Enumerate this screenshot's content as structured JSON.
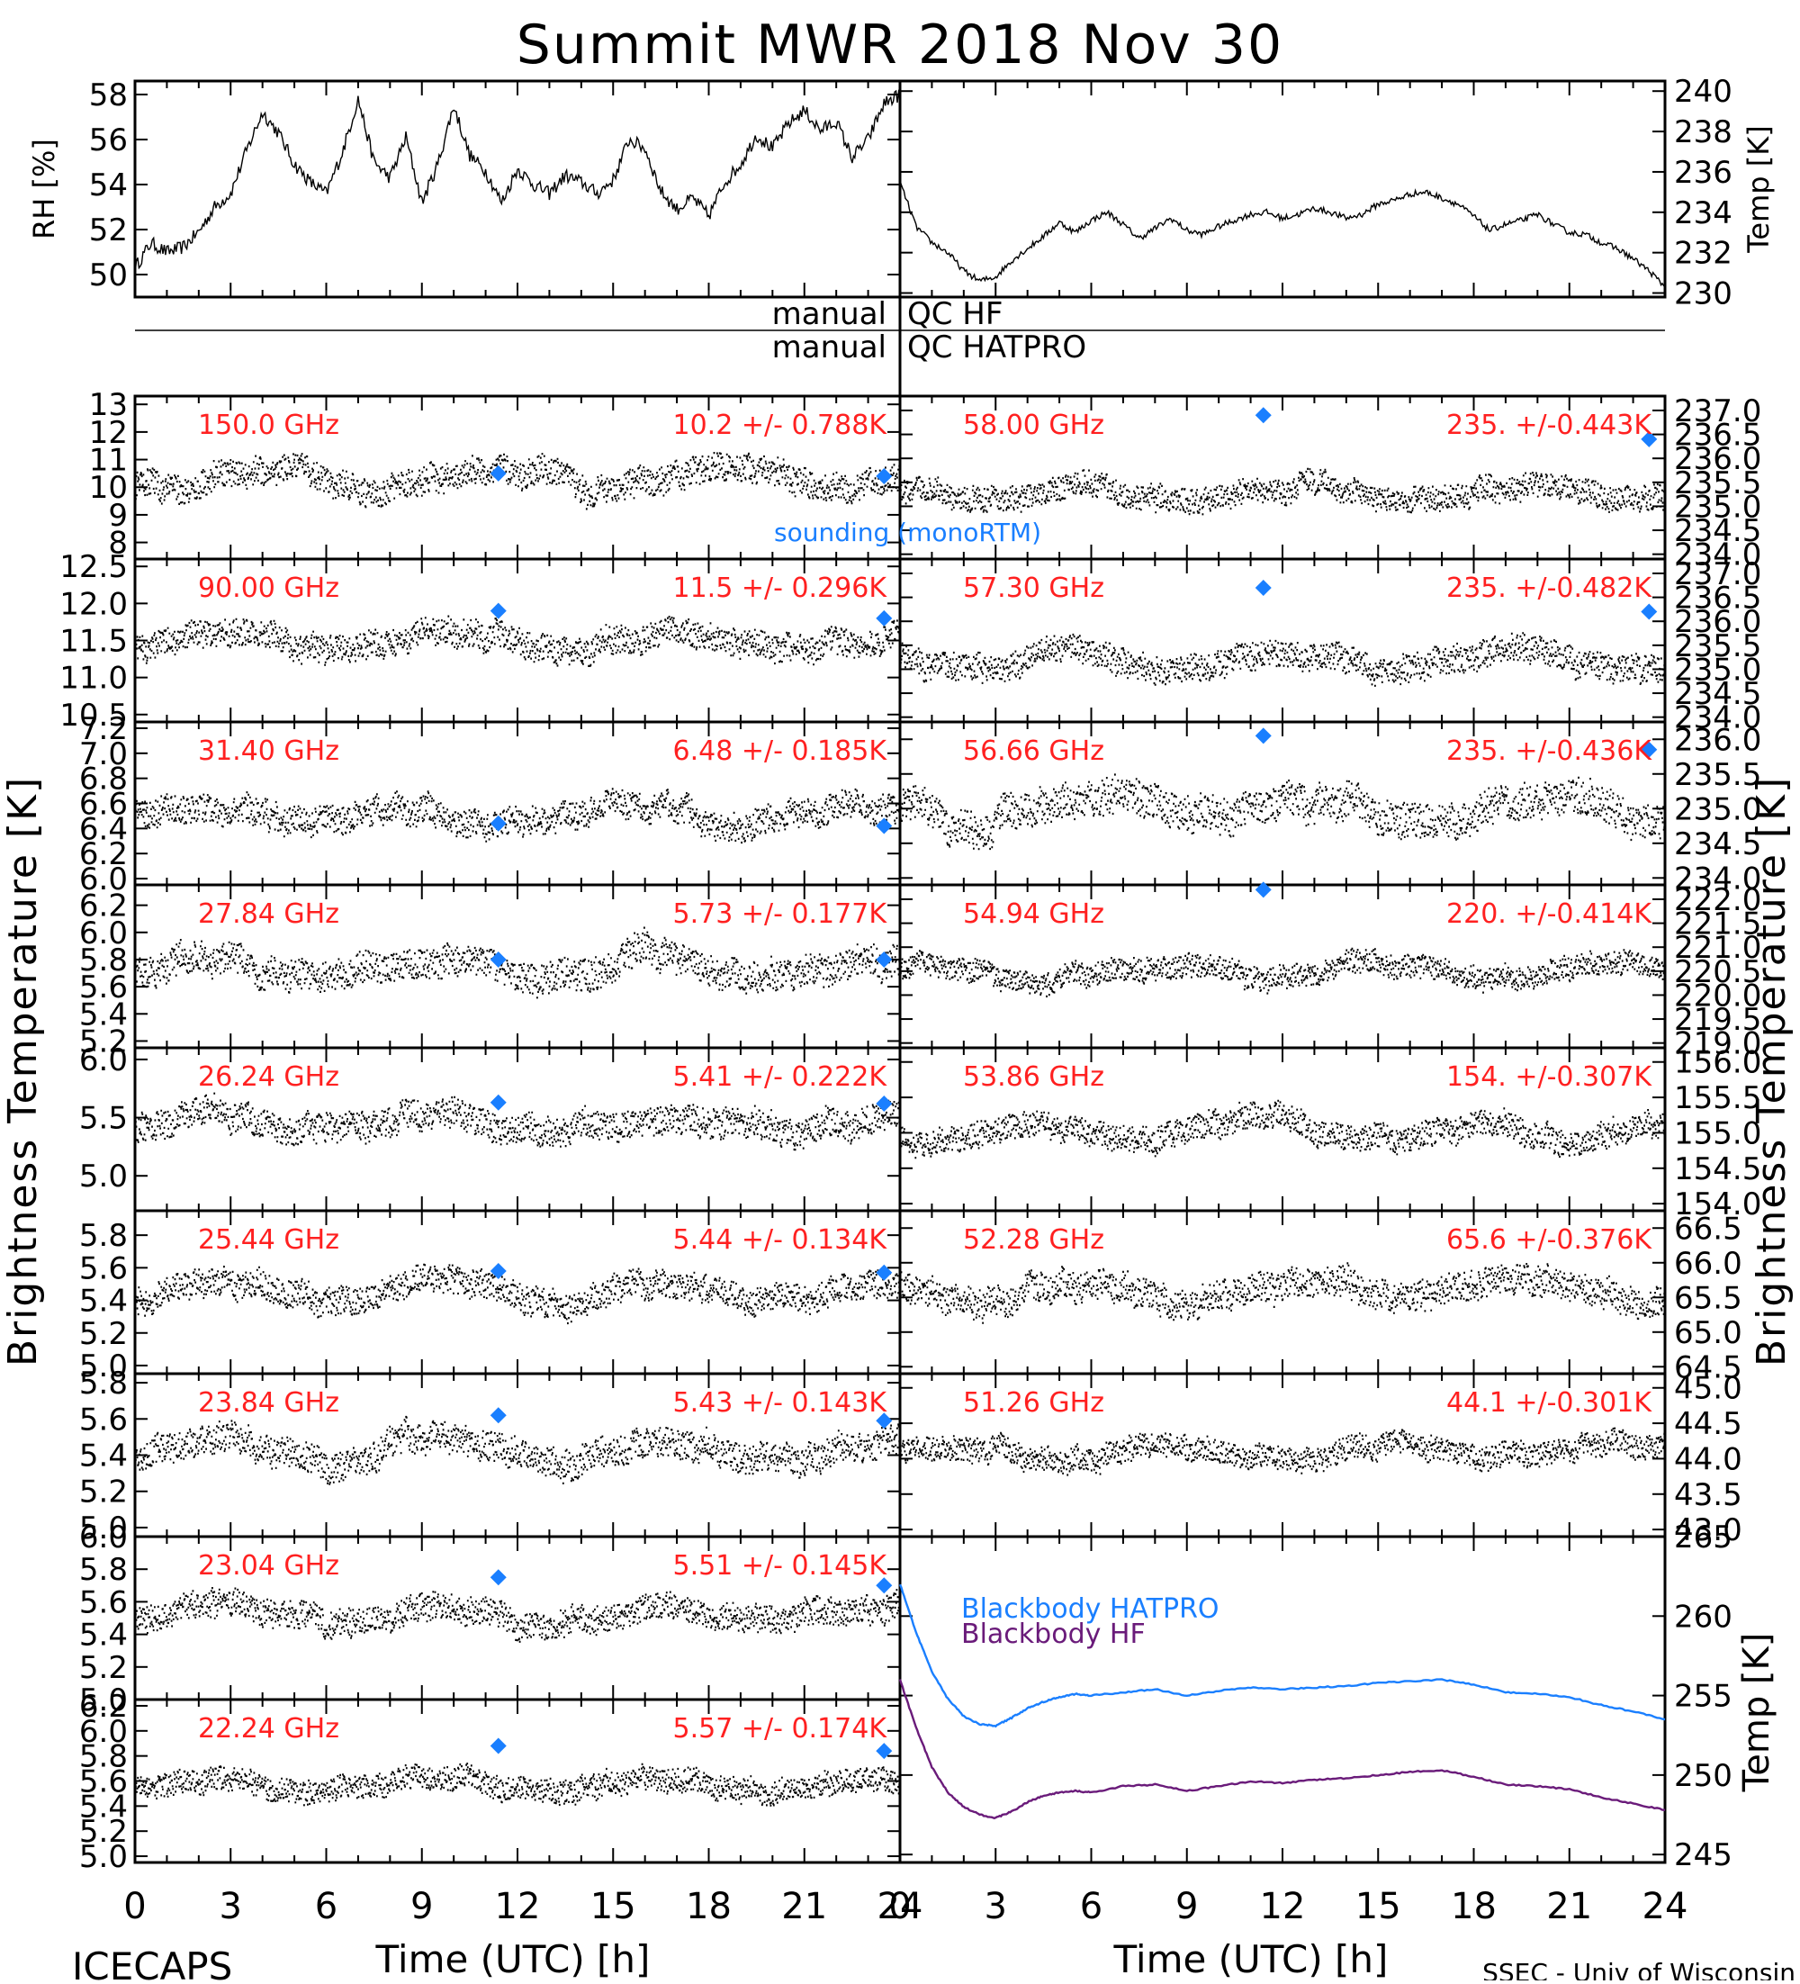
{
  "page": {
    "title": "Summit MWR 2018 Nov 30",
    "footer_left": "ICECAPS",
    "footer_right": "SSEC - Univ of Wisconsin",
    "time_label": "Time (UTC) [h]",
    "time_ticks": [
      "0",
      "3",
      "6",
      "9",
      "12",
      "15",
      "18",
      "21",
      "24"
    ],
    "left_axis_label": "Brightness Temperature [K]",
    "right_axis_label": "Brightness Temperature [K]",
    "qc_left_word": "manual",
    "qc_hf": "QC HF",
    "qc_hatpro": "QC HATPRO",
    "sounding_label": "sounding (monoRTM)",
    "colors": {
      "red_labels": "#ff2020",
      "sounding": "#1a7fff",
      "bb_hatpro": "#1a7fff",
      "bb_hf": "#6a1b7a",
      "trace": "#000000"
    }
  },
  "chart_data": [
    {
      "id": "rh",
      "type": "line",
      "xlabel": "",
      "ylabel": "RH [%]",
      "xlim": [
        0,
        24
      ],
      "ylim": [
        49,
        58.6
      ],
      "ticks": [
        50,
        52,
        54,
        56,
        58
      ],
      "x": [
        0,
        0.5,
        1,
        1.5,
        2,
        2.5,
        3,
        3.5,
        4,
        4.5,
        5,
        5.5,
        6,
        6.5,
        7,
        7.5,
        8,
        8.5,
        9,
        9.5,
        10,
        10.5,
        11,
        11.5,
        12,
        12.5,
        13,
        13.5,
        14,
        14.5,
        15,
        15.5,
        16,
        16.5,
        17,
        17.5,
        18,
        18.5,
        19,
        19.5,
        20,
        20.5,
        21,
        21.5,
        22,
        22.5,
        23,
        23.5,
        24
      ],
      "y": [
        50.3,
        51.4,
        51.0,
        51.2,
        51.9,
        53.0,
        53.6,
        55.5,
        57.2,
        56.3,
        54.9,
        54.1,
        53.6,
        55.4,
        57.8,
        55.0,
        54.3,
        56.1,
        53.2,
        54.9,
        57.5,
        55.3,
        54.6,
        53.2,
        54.7,
        54.0,
        53.6,
        54.4,
        54.1,
        53.6,
        54.2,
        56.0,
        55.6,
        53.7,
        52.9,
        53.4,
        52.6,
        54.1,
        54.9,
        56.2,
        55.6,
        56.7,
        57.3,
        56.4,
        56.8,
        55.2,
        56.0,
        57.6,
        58.0
      ]
    },
    {
      "id": "temp",
      "type": "line",
      "xlabel": "",
      "ylabel": "Temp [K]",
      "xlim": [
        0,
        24
      ],
      "ylim": [
        229.8,
        240.5
      ],
      "ticks": [
        230,
        232,
        234,
        236,
        238,
        240
      ],
      "x": [
        0,
        0.5,
        1,
        1.5,
        2,
        2.5,
        3,
        3.5,
        4,
        4.5,
        5,
        5.5,
        6,
        6.5,
        7,
        7.5,
        8,
        8.5,
        9,
        9.5,
        10,
        10.5,
        11,
        11.5,
        12,
        12.5,
        13,
        13.5,
        14,
        14.5,
        15,
        15.5,
        16,
        16.5,
        17,
        17.5,
        18,
        18.5,
        19,
        19.5,
        20,
        20.5,
        21,
        21.5,
        22,
        22.5,
        23,
        23.5,
        24
      ],
      "y": [
        235.5,
        233.3,
        232.5,
        232.0,
        231.1,
        230.6,
        230.8,
        231.6,
        232.2,
        232.8,
        233.5,
        233.0,
        233.6,
        234.0,
        233.4,
        232.7,
        233.2,
        233.7,
        233.1,
        232.9,
        233.3,
        233.6,
        233.9,
        234.0,
        233.7,
        233.9,
        234.2,
        234.0,
        233.7,
        233.9,
        234.4,
        234.6,
        234.9,
        235.0,
        234.7,
        234.4,
        233.8,
        233.1,
        233.4,
        233.6,
        233.9,
        233.4,
        233.0,
        232.9,
        232.5,
        232.2,
        231.7,
        231.1,
        230.3
      ]
    },
    {
      "id": "p150",
      "type": "scatter",
      "freq": "150.0 GHz",
      "stats": "10.2 +/- 0.788K",
      "ylim": [
        7.4,
        13.3
      ],
      "ticks": [
        "8",
        "9",
        "10",
        "11",
        "12",
        "13"
      ],
      "base": 10.3,
      "noise": 0.9,
      "diamonds": [
        [
          11.4,
          10.5
        ],
        [
          23.5,
          10.4
        ]
      ],
      "sounding_label": true
    },
    {
      "id": "p90",
      "type": "scatter",
      "freq": "90.00 GHz",
      "stats": "11.5 +/- 0.296K",
      "ylim": [
        10.4,
        12.6
      ],
      "ticks": [
        "10.5",
        "11.0",
        "11.5",
        "12.0",
        "12.5"
      ],
      "base": 11.5,
      "noise": 0.33,
      "diamonds": [
        [
          11.4,
          11.9
        ],
        [
          23.5,
          11.8
        ]
      ]
    },
    {
      "id": "p314",
      "type": "scatter",
      "freq": "31.40 GHz",
      "stats": "6.48 +/- 0.185K",
      "ylim": [
        5.95,
        7.25
      ],
      "ticks": [
        "6.0",
        "6.2",
        "6.4",
        "6.6",
        "6.8",
        "7.0",
        "7.2"
      ],
      "base": 6.5,
      "noise": 0.2,
      "diamonds": [
        [
          11.4,
          6.44
        ],
        [
          23.5,
          6.42
        ]
      ]
    },
    {
      "id": "p2784",
      "type": "scatter",
      "freq": "27.84 GHz",
      "stats": "5.73 +/- 0.177K",
      "ylim": [
        5.15,
        6.35
      ],
      "ticks": [
        "5.2",
        "5.4",
        "5.6",
        "5.8",
        "6.0",
        "6.2"
      ],
      "base": 5.75,
      "noise": 0.2,
      "diamonds": [
        [
          11.4,
          5.8
        ],
        [
          23.5,
          5.8
        ]
      ]
    },
    {
      "id": "p2624",
      "type": "scatter",
      "freq": "26.24 GHz",
      "stats": "5.41 +/- 0.222K",
      "ylim": [
        4.7,
        6.1
      ],
      "ticks": [
        "5.0",
        "5.5",
        "6.0"
      ],
      "base": 5.45,
      "noise": 0.22,
      "diamonds": [
        [
          11.4,
          5.63
        ],
        [
          23.5,
          5.62
        ]
      ]
    },
    {
      "id": "p2544",
      "type": "scatter",
      "freq": "25.44 GHz",
      "stats": "5.44 +/- 0.134K",
      "ylim": [
        4.95,
        5.95
      ],
      "ticks": [
        "5.0",
        "5.2",
        "5.4",
        "5.6",
        "5.8"
      ],
      "base": 5.45,
      "noise": 0.15,
      "diamonds": [
        [
          11.4,
          5.58
        ],
        [
          23.5,
          5.57
        ]
      ]
    },
    {
      "id": "p2384",
      "type": "scatter",
      "freq": "23.84 GHz",
      "stats": "5.43 +/- 0.143K",
      "ylim": [
        4.95,
        5.85
      ],
      "ticks": [
        "5.0",
        "5.2",
        "5.4",
        "5.6",
        "5.8"
      ],
      "base": 5.43,
      "noise": 0.15,
      "diamonds": [
        [
          11.4,
          5.62
        ],
        [
          23.5,
          5.59
        ]
      ]
    },
    {
      "id": "p2304",
      "type": "scatter",
      "freq": "23.04 GHz",
      "stats": "5.51 +/- 0.145K",
      "ylim": [
        5.0,
        6.0
      ],
      "ticks": [
        "5.0",
        "5.2",
        "5.4",
        "5.6",
        "5.8",
        "6.0"
      ],
      "base": 5.52,
      "noise": 0.15,
      "diamonds": [
        [
          11.4,
          5.75
        ],
        [
          23.5,
          5.7
        ]
      ]
    },
    {
      "id": "p2224",
      "type": "scatter",
      "freq": "22.24 GHz",
      "stats": "5.57 +/- 0.174K",
      "ylim": [
        4.95,
        6.25
      ],
      "ticks": [
        "5.0",
        "5.2",
        "5.4",
        "5.6",
        "5.8",
        "6.0",
        "6.2"
      ],
      "base": 5.57,
      "noise": 0.17,
      "diamonds": [
        [
          11.4,
          5.88
        ],
        [
          23.5,
          5.84
        ]
      ]
    },
    {
      "id": "p5800",
      "type": "scatter",
      "freq": "58.00 GHz",
      "stats": "235. +/-0.443K",
      "ylim": [
        233.9,
        237.3
      ],
      "ticks": [
        "234.0",
        "234.5",
        "235.0",
        "235.5",
        "236.0",
        "236.5",
        "237.0"
      ],
      "base": 235.3,
      "noise": 0.45,
      "diamonds": [
        [
          11.4,
          236.9
        ],
        [
          23.5,
          236.4
        ]
      ]
    },
    {
      "id": "p5730",
      "type": "scatter",
      "freq": "57.30 GHz",
      "stats": "235. +/-0.482K",
      "ylim": [
        233.9,
        237.3
      ],
      "ticks": [
        "234.0",
        "234.5",
        "235.0",
        "235.5",
        "236.0",
        "236.5",
        "237.0"
      ],
      "base": 235.2,
      "noise": 0.5,
      "diamonds": [
        [
          11.4,
          236.7
        ],
        [
          23.5,
          236.2
        ]
      ]
    },
    {
      "id": "p5666",
      "type": "scatter",
      "freq": "56.66 GHz",
      "stats": "235. +/-0.436K",
      "ylim": [
        233.9,
        236.25
      ],
      "ticks": [
        "234.0",
        "234.5",
        "235.0",
        "235.5",
        "236.0"
      ],
      "base": 235.0,
      "noise": 0.45,
      "diamonds": [
        [
          11.4,
          236.05
        ],
        [
          23.5,
          235.85
        ]
      ]
    },
    {
      "id": "p5494",
      "type": "scatter",
      "freq": "54.94 GHz",
      "stats": "220. +/-0.414K",
      "ylim": [
        218.9,
        222.3
      ],
      "ticks": [
        "219.0",
        "219.5",
        "220.0",
        "220.5",
        "221.0",
        "221.5",
        "222.0"
      ],
      "base": 220.5,
      "noise": 0.42,
      "diamonds": [
        [
          11.4,
          222.2
        ]
      ]
    },
    {
      "id": "p5386",
      "type": "scatter",
      "freq": "53.86 GHz",
      "stats": "154. +/-0.307K",
      "ylim": [
        153.9,
        156.2
      ],
      "ticks": [
        "154.0",
        "154.5",
        "155.0",
        "155.5",
        "156.0"
      ],
      "base": 155.0,
      "noise": 0.32,
      "diamonds": []
    },
    {
      "id": "p5228",
      "type": "scatter",
      "freq": "52.28 GHz",
      "stats": "65.6 +/-0.376K",
      "ylim": [
        64.4,
        66.75
      ],
      "ticks": [
        "64.5",
        "65.0",
        "65.5",
        "66.0",
        "66.5"
      ],
      "base": 65.6,
      "noise": 0.38,
      "diamonds": []
    },
    {
      "id": "p5126",
      "type": "scatter",
      "freq": "51.26 GHz",
      "stats": "44.1 +/-0.301K",
      "ylim": [
        42.9,
        45.2
      ],
      "ticks": [
        "43.0",
        "43.5",
        "44.0",
        "44.5",
        "45.0"
      ],
      "base": 44.1,
      "noise": 0.3,
      "diamonds": []
    },
    {
      "id": "bb",
      "type": "line",
      "ylabel": "Temp [K]",
      "xlim": [
        0,
        24
      ],
      "ylim": [
        244.5,
        265
      ],
      "ticks": [
        "245",
        "250",
        "255",
        "260",
        "265"
      ],
      "x": [
        0,
        0.5,
        1,
        1.5,
        2,
        2.5,
        3,
        3.5,
        4,
        4.5,
        5,
        5.5,
        6,
        7,
        8,
        9,
        10,
        11,
        12,
        13,
        14,
        15,
        16,
        17,
        18,
        19,
        20,
        21,
        22,
        23,
        24
      ],
      "series": [
        {
          "name": "Blackbody HATPRO",
          "y": [
            262,
            259,
            256.5,
            254.8,
            253.7,
            253.2,
            253.1,
            253.6,
            254.2,
            254.6,
            254.9,
            255.1,
            255.0,
            255.2,
            255.4,
            255.0,
            255.3,
            255.5,
            255.4,
            255.5,
            255.6,
            255.8,
            255.9,
            256.0,
            255.7,
            255.2,
            255.1,
            254.9,
            254.4,
            254.0,
            253.5
          ]
        },
        {
          "name": "Blackbody HF",
          "y": [
            256,
            253,
            250.5,
            248.9,
            248.0,
            247.5,
            247.3,
            247.7,
            248.3,
            248.7,
            248.9,
            249.0,
            248.9,
            249.3,
            249.4,
            249.0,
            249.3,
            249.6,
            249.5,
            249.7,
            249.8,
            250.0,
            250.2,
            250.3,
            249.9,
            249.4,
            249.3,
            249.1,
            248.6,
            248.2,
            247.8
          ]
        }
      ]
    }
  ]
}
